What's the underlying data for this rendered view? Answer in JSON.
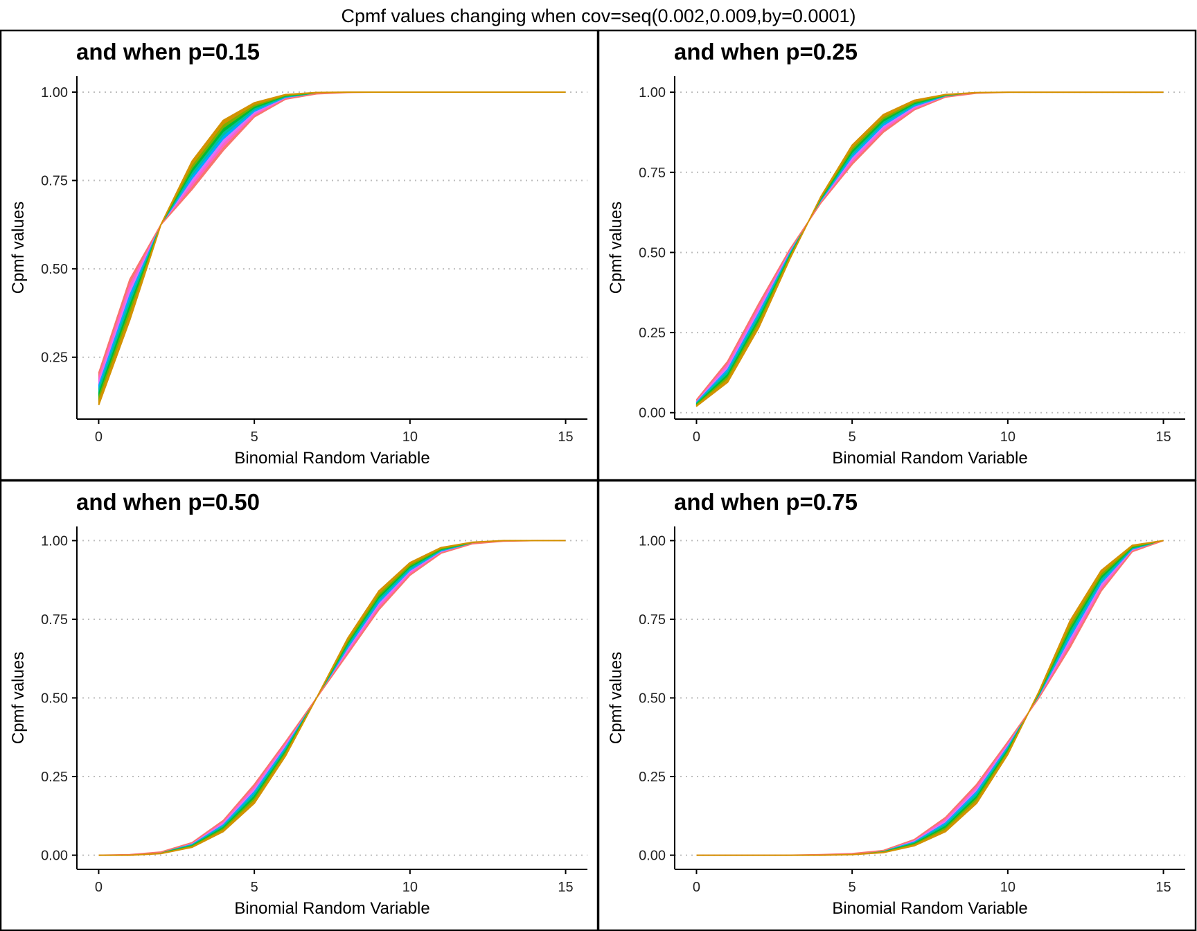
{
  "figure_title": "Cpmf values changing when cov=seq(0.002,0.009,by=0.0001)",
  "colors": {
    "band": [
      "#F8766D",
      "#FF61C3",
      "#DB72FB",
      "#00A9FF",
      "#00C19F",
      "#00BA38",
      "#7CAE00",
      "#D39200"
    ],
    "grid": "#bdbdbd",
    "axis": "#000000"
  },
  "chart_data": [
    {
      "type": "area",
      "title": "and when p=0.15",
      "xlabel": "Binomial Random Variable",
      "ylabel": "Cpmf values",
      "x": [
        0,
        1,
        2,
        3,
        4,
        5,
        6,
        7,
        8,
        9,
        10,
        11,
        12,
        13,
        14,
        15
      ],
      "xticks": [
        0,
        5,
        10,
        15
      ],
      "yticks": [
        0.25,
        0.5,
        0.75,
        1.0
      ],
      "ytick_labels": [
        "0.25",
        "0.50",
        "0.75",
        "1.00"
      ],
      "xlim": [
        -0.7,
        15.7
      ],
      "ylim": [
        0.075,
        1.045
      ],
      "grid": "horizontal dotted",
      "series": [
        {
          "values": [
            0.205,
            0.47,
            0.625,
            0.725,
            0.835,
            0.93,
            0.98,
            0.995,
            0.999,
            1,
            1,
            1,
            1,
            1,
            1,
            1
          ]
        },
        {
          "values": [
            0.115,
            0.355,
            0.625,
            0.805,
            0.92,
            0.97,
            0.993,
            0.999,
            1,
            1,
            1,
            1,
            1,
            1,
            1,
            1
          ]
        }
      ]
    },
    {
      "type": "area",
      "title": "and when p=0.25",
      "xlabel": "Binomial Random Variable",
      "ylabel": "Cpmf values",
      "x": [
        0,
        1,
        2,
        3,
        4,
        5,
        6,
        7,
        8,
        9,
        10,
        11,
        12,
        13,
        14,
        15
      ],
      "xticks": [
        0,
        5,
        10,
        15
      ],
      "yticks": [
        0.0,
        0.25,
        0.5,
        0.75,
        1.0
      ],
      "ytick_labels": [
        "0.00",
        "0.25",
        "0.50",
        "0.75",
        "1.00"
      ],
      "xlim": [
        -0.7,
        15.7
      ],
      "ylim": [
        -0.02,
        1.05
      ],
      "grid": "horizontal dotted",
      "series": [
        {
          "values": [
            0.04,
            0.16,
            0.34,
            0.51,
            0.655,
            0.775,
            0.875,
            0.945,
            0.985,
            0.997,
            1,
            1,
            1,
            1,
            1,
            1
          ]
        },
        {
          "values": [
            0.02,
            0.095,
            0.265,
            0.48,
            0.675,
            0.835,
            0.93,
            0.975,
            0.993,
            0.999,
            1,
            1,
            1,
            1,
            1,
            1
          ]
        }
      ]
    },
    {
      "type": "area",
      "title": "and when p=0.50",
      "xlabel": "Binomial Random Variable",
      "ylabel": "Cpmf values",
      "x": [
        0,
        1,
        2,
        3,
        4,
        5,
        6,
        7,
        8,
        9,
        10,
        11,
        12,
        13,
        14,
        15
      ],
      "xticks": [
        0,
        5,
        10,
        15
      ],
      "yticks": [
        0.0,
        0.25,
        0.5,
        0.75,
        1.0
      ],
      "ytick_labels": [
        "0.00",
        "0.25",
        "0.50",
        "0.75",
        "1.00"
      ],
      "xlim": [
        -0.7,
        15.7
      ],
      "ylim": [
        -0.045,
        1.045
      ],
      "grid": "horizontal dotted",
      "series": [
        {
          "values": [
            0.0,
            0.002,
            0.01,
            0.04,
            0.11,
            0.225,
            0.36,
            0.5,
            0.64,
            0.78,
            0.89,
            0.96,
            0.99,
            0.998,
            1,
            1
          ]
        },
        {
          "values": [
            0.0,
            0.0,
            0.005,
            0.025,
            0.075,
            0.165,
            0.315,
            0.5,
            0.69,
            0.84,
            0.93,
            0.978,
            0.995,
            1,
            1,
            1
          ]
        }
      ]
    },
    {
      "type": "area",
      "title": "and when p=0.75",
      "xlabel": "Binomial Random Variable",
      "ylabel": "Cpmf values",
      "x": [
        0,
        1,
        2,
        3,
        4,
        5,
        6,
        7,
        8,
        9,
        10,
        11,
        12,
        13,
        14,
        15
      ],
      "xticks": [
        0,
        5,
        10,
        15
      ],
      "yticks": [
        0.0,
        0.25,
        0.5,
        0.75,
        1.0
      ],
      "ytick_labels": [
        "0.00",
        "0.25",
        "0.50",
        "0.75",
        "1.00"
      ],
      "xlim": [
        -0.7,
        15.7
      ],
      "ylim": [
        -0.045,
        1.045
      ],
      "grid": "horizontal dotted",
      "series": [
        {
          "values": [
            0,
            0,
            0,
            0,
            0.002,
            0.005,
            0.015,
            0.05,
            0.12,
            0.225,
            0.36,
            0.5,
            0.66,
            0.84,
            0.965,
            1
          ]
        },
        {
          "values": [
            0,
            0,
            0,
            0,
            0.0,
            0.002,
            0.008,
            0.03,
            0.075,
            0.165,
            0.32,
            0.52,
            0.745,
            0.905,
            0.985,
            1
          ]
        }
      ]
    }
  ]
}
